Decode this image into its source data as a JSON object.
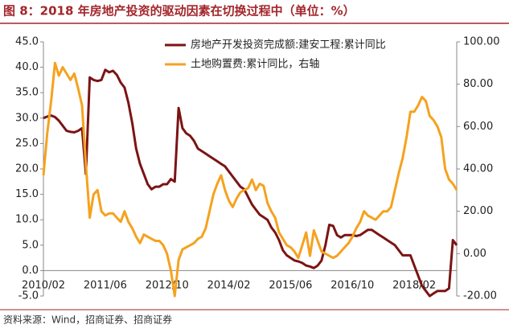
{
  "chart_data": {
    "type": "line",
    "title": "图 8：2018 年房地产投资的驱动因素在切换过程中（单位：%）",
    "source": "资料来源：Wind，招商证券、招商证券",
    "categories": [
      "2010/02",
      null,
      null,
      null,
      null,
      null,
      null,
      null,
      null,
      null,
      null,
      null,
      null,
      null,
      null,
      null,
      "2011/06",
      null,
      null,
      null,
      null,
      null,
      null,
      null,
      null,
      null,
      null,
      null,
      null,
      null,
      null,
      null,
      "2012/10",
      null,
      null,
      null,
      null,
      null,
      null,
      null,
      null,
      null,
      null,
      null,
      null,
      null,
      null,
      null,
      "2014/02",
      null,
      null,
      null,
      null,
      null,
      null,
      null,
      null,
      null,
      null,
      null,
      null,
      null,
      null,
      null,
      "2015/06",
      null,
      null,
      null,
      null,
      null,
      null,
      null,
      null,
      null,
      null,
      null,
      null,
      null,
      null,
      null,
      "2016/10",
      null,
      null,
      null,
      null,
      null,
      null,
      null,
      null,
      null,
      null,
      null,
      null,
      null,
      null,
      null,
      "2018/02",
      null,
      null,
      null,
      null,
      null,
      null,
      null,
      null,
      null,
      null,
      null
    ],
    "series": [
      {
        "name": "房地产开发投资完成额:建安工程:累计同比",
        "color": "#7b1414",
        "values": [
          30,
          30.3,
          30.5,
          30.2,
          29.5,
          28.5,
          27.5,
          27.3,
          27.2,
          27.5,
          28,
          19,
          38,
          37.5,
          37.3,
          37.5,
          39.5,
          39,
          39.3,
          38.5,
          37,
          36,
          33,
          29,
          24,
          21,
          19,
          17,
          16,
          16.5,
          16.5,
          17,
          17,
          18,
          17.5,
          32,
          28,
          27,
          26.5,
          25.5,
          24,
          23.5,
          23,
          22.5,
          22,
          21.5,
          21,
          20.5,
          19.5,
          18.5,
          17.5,
          16.5,
          16,
          14.5,
          13,
          12,
          11,
          10.5,
          10,
          8.5,
          7.5,
          6,
          4,
          3,
          2.5,
          2,
          1.8,
          1.5,
          1,
          0.8,
          0.5,
          1,
          2,
          5,
          9,
          8.8,
          7,
          6.5,
          7,
          7,
          7,
          6.8,
          7,
          7.5,
          8,
          8,
          7.5,
          7,
          6.5,
          6,
          5.5,
          5,
          4,
          3,
          3,
          3,
          1,
          -1,
          -3,
          -4,
          -5,
          -4.5,
          -4,
          -4,
          -4,
          -3.5,
          6,
          5
        ]
      },
      {
        "name": "土地购置费:累计同比，右轴",
        "color": "#f5a21f",
        "axis": "y2",
        "values": [
          37,
          57,
          72,
          90,
          84,
          88,
          85,
          82,
          85,
          78,
          70,
          42,
          17,
          28,
          30,
          20,
          18,
          19,
          19,
          17,
          15,
          20,
          15,
          12,
          8,
          5,
          9,
          8,
          7,
          6,
          6,
          4,
          0,
          -8,
          -20,
          -3,
          2,
          3,
          4,
          5,
          7,
          8,
          12,
          20,
          28,
          33,
          37,
          30,
          25,
          22,
          26,
          29,
          30,
          31,
          35,
          30,
          33,
          32,
          24,
          20,
          17,
          10,
          7,
          4,
          3,
          1,
          -2,
          4,
          10,
          -1,
          11,
          6,
          1,
          0,
          -1,
          -2,
          -1,
          1,
          3,
          5,
          8,
          12,
          15,
          20,
          18,
          17,
          16,
          18,
          20,
          20,
          22,
          30,
          38,
          45,
          55,
          67,
          67,
          70,
          74,
          72,
          65,
          63,
          60,
          55,
          40,
          35,
          33,
          30
        ]
      }
    ],
    "ylim": [
      -5,
      45
    ],
    "yticks": [
      {
        "value": -5,
        "label": "-5.0"
      },
      {
        "value": 0,
        "label": "0.0"
      },
      {
        "value": 5,
        "label": "5.0"
      },
      {
        "value": 10,
        "label": "10.0"
      },
      {
        "value": 15,
        "label": "15.0"
      },
      {
        "value": 20,
        "label": "20.0"
      },
      {
        "value": 25,
        "label": "25.0"
      },
      {
        "value": 30,
        "label": "30.0"
      },
      {
        "value": 35,
        "label": "35.0"
      },
      {
        "value": 40,
        "label": "40.0"
      },
      {
        "value": 45,
        "label": "45.0"
      }
    ],
    "y2lim": [
      -20,
      100
    ],
    "y2ticks": [
      {
        "value": -20,
        "label": "-20.00"
      },
      {
        "value": 0,
        "label": "0.00"
      },
      {
        "value": 20,
        "label": "20.00"
      },
      {
        "value": 40,
        "label": "40.00"
      },
      {
        "value": 60,
        "label": "60.00"
      },
      {
        "value": 80,
        "label": "80.00"
      },
      {
        "value": 100,
        "label": "100.00"
      }
    ],
    "legend": "upper right",
    "grid": false
  }
}
